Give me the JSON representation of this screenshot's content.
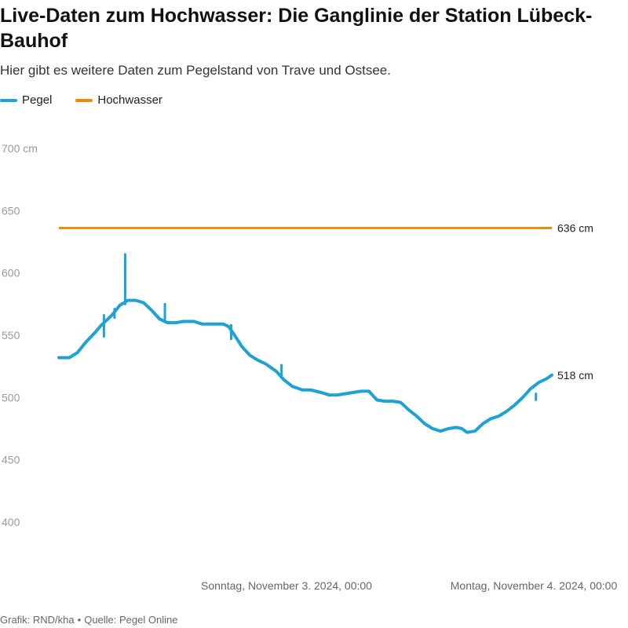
{
  "header": {
    "title": "Live-Daten zum Hochwasser: Die Ganglinie der Station Lübeck-Bauhof",
    "subtitle": "Hier gibt es weitere Daten zum Pegelstand von Trave und Ostsee."
  },
  "footer": {
    "credit": "Grafik: RND/kha",
    "separator": "•",
    "source": "Quelle: Pegel Online"
  },
  "colors": {
    "pegel": "#1ca3d4",
    "hochwasser": "#f08a0b",
    "tick_label": "#9a9a9a"
  },
  "chart_data": {
    "type": "line",
    "title": "Live-Daten zum Hochwasser: Die Ganglinie der Station Lübeck-Bauhof",
    "subtitle": "Hier gibt es weitere Daten zum Pegelstand von Trave und Ostsee.",
    "legend_position": "top-left",
    "grid": false,
    "ylim": [
      400,
      700
    ],
    "y_unit": "cm",
    "y_ticks": [
      {
        "value": 700,
        "label": "700 cm"
      },
      {
        "value": 650,
        "label": "650"
      },
      {
        "value": 600,
        "label": "600"
      },
      {
        "value": 550,
        "label": "550"
      },
      {
        "value": 500,
        "label": "500"
      },
      {
        "value": 450,
        "label": "450"
      },
      {
        "value": 400,
        "label": "400"
      }
    ],
    "xlim": [
      "2024-11-02T03:00",
      "2024-11-04T00:00"
    ],
    "x_ticks": [
      {
        "value": "2024-11-03T00:00",
        "label": "Sonntag, November 3. 2024, 00:00"
      },
      {
        "value": "2024-11-04T00:00",
        "label": "Montag, November 4. 2024, 00:00"
      }
    ],
    "series": [
      {
        "name": "Pegel",
        "color": "#1ca3d4",
        "end_label": "518 cm",
        "points": [
          [
            "2024-11-02T03:00",
            532
          ],
          [
            "2024-11-02T03:40",
            532
          ],
          [
            "2024-11-02T04:10",
            536
          ],
          [
            "2024-11-02T04:40",
            544
          ],
          [
            "2024-11-02T05:20",
            553
          ],
          [
            "2024-11-02T05:40",
            558
          ],
          [
            "2024-11-02T06:20",
            566
          ],
          [
            "2024-11-02T06:50",
            574
          ],
          [
            "2024-11-02T07:20",
            578
          ],
          [
            "2024-11-02T07:50",
            578
          ],
          [
            "2024-11-02T08:20",
            576
          ],
          [
            "2024-11-02T08:50",
            570
          ],
          [
            "2024-11-02T09:20",
            563
          ],
          [
            "2024-11-02T09:50",
            560
          ],
          [
            "2024-11-02T10:20",
            560
          ],
          [
            "2024-11-02T10:50",
            561
          ],
          [
            "2024-11-02T11:30",
            561
          ],
          [
            "2024-11-02T12:00",
            559
          ],
          [
            "2024-11-02T12:40",
            559
          ],
          [
            "2024-11-02T13:20",
            559
          ],
          [
            "2024-11-02T13:40",
            557
          ],
          [
            "2024-11-02T14:00",
            551
          ],
          [
            "2024-11-02T14:30",
            541
          ],
          [
            "2024-11-02T15:00",
            534
          ],
          [
            "2024-11-02T15:30",
            530
          ],
          [
            "2024-11-02T16:00",
            527
          ],
          [
            "2024-11-02T16:40",
            521
          ],
          [
            "2024-11-02T17:10",
            514
          ],
          [
            "2024-11-02T17:40",
            509
          ],
          [
            "2024-11-02T18:20",
            506
          ],
          [
            "2024-11-02T18:50",
            506
          ],
          [
            "2024-11-02T19:30",
            504
          ],
          [
            "2024-11-02T20:00",
            502
          ],
          [
            "2024-11-02T20:30",
            502
          ],
          [
            "2024-11-02T21:00",
            503
          ],
          [
            "2024-11-02T21:30",
            504
          ],
          [
            "2024-11-02T22:00",
            505
          ],
          [
            "2024-11-02T22:30",
            505
          ],
          [
            "2024-11-02T23:00",
            498
          ],
          [
            "2024-11-02T23:30",
            497
          ],
          [
            "2024-11-03T00:00",
            497
          ],
          [
            "2024-11-03T00:30",
            496
          ],
          [
            "2024-11-03T01:00",
            490
          ],
          [
            "2024-11-03T01:30",
            485
          ],
          [
            "2024-11-03T02:00",
            479
          ],
          [
            "2024-11-03T02:30",
            475
          ],
          [
            "2024-11-03T03:00",
            473
          ],
          [
            "2024-11-03T03:30",
            475
          ],
          [
            "2024-11-03T04:00",
            476
          ],
          [
            "2024-11-03T04:20",
            475
          ],
          [
            "2024-11-03T04:40",
            472
          ],
          [
            "2024-11-03T05:10",
            473
          ],
          [
            "2024-11-03T05:40",
            479
          ],
          [
            "2024-11-03T06:10",
            483
          ],
          [
            "2024-11-03T06:40",
            485
          ],
          [
            "2024-11-03T07:10",
            489
          ],
          [
            "2024-11-03T07:40",
            494
          ],
          [
            "2024-11-03T08:10",
            500
          ],
          [
            "2024-11-03T08:40",
            507
          ],
          [
            "2024-11-03T09:10",
            512
          ],
          [
            "2024-11-03T09:40",
            515
          ],
          [
            "2024-11-03T10:00",
            518
          ]
        ],
        "spikes": [
          {
            "x": "2024-11-02T05:50",
            "low": 549,
            "high": 566
          },
          {
            "x": "2024-11-02T06:30",
            "low": 564,
            "high": 571
          },
          {
            "x": "2024-11-02T07:10",
            "low": 575,
            "high": 615
          },
          {
            "x": "2024-11-02T09:40",
            "low": 563,
            "high": 575
          },
          {
            "x": "2024-11-02T13:50",
            "low": 547,
            "high": 558
          },
          {
            "x": "2024-11-02T17:00",
            "low": 517,
            "high": 526
          },
          {
            "x": "2024-11-03T09:00",
            "low": 498,
            "high": 503
          }
        ]
      },
      {
        "name": "Hochwasser",
        "color": "#f08a0b",
        "end_label": "636 cm",
        "points": [
          [
            "2024-11-02T03:00",
            636
          ],
          [
            "2024-11-03T10:00",
            636
          ]
        ]
      }
    ]
  }
}
